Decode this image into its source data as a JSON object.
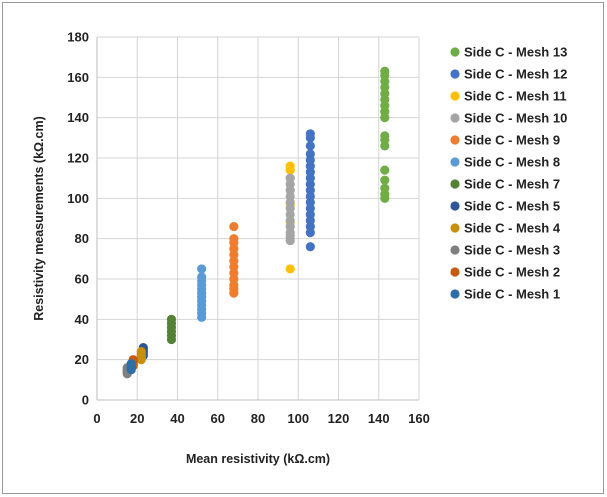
{
  "chart_data": {
    "type": "scatter",
    "title": "",
    "xlabel": "Mean resistivity (kΩ.cm)",
    "ylabel": "Resistivity measurements (kΩ.cm)",
    "xlim": [
      0,
      160
    ],
    "ylim": [
      0,
      180
    ],
    "xticks": [
      0,
      20,
      40,
      60,
      80,
      100,
      120,
      140,
      160
    ],
    "yticks": [
      0,
      20,
      40,
      60,
      80,
      100,
      120,
      140,
      160,
      180
    ],
    "grid": true,
    "legend_position": "right",
    "series": [
      {
        "name": "Side C - Mesh 13",
        "color": "#70ad47",
        "x": 143,
        "y": [
          100,
          102,
          105,
          109,
          114,
          126,
          129,
          131,
          140,
          143,
          146,
          149,
          152,
          155,
          158,
          161,
          163
        ]
      },
      {
        "name": "Side C - Mesh 12",
        "color": "#4472c4",
        "x": 106,
        "y": [
          76,
          83,
          86,
          89,
          92,
          95,
          98,
          101,
          104,
          107,
          110,
          113,
          116,
          119,
          122,
          126,
          130,
          132
        ]
      },
      {
        "name": "Side C - Mesh 11",
        "color": "#ffc000",
        "x": 96,
        "y": [
          65,
          88,
          97,
          104,
          110,
          114,
          116
        ]
      },
      {
        "name": "Side C - Mesh 10",
        "color": "#a5a5a5",
        "x": 96,
        "y": [
          79,
          81,
          83,
          86,
          89,
          92,
          95,
          98,
          101,
          104,
          107,
          110
        ]
      },
      {
        "name": "Side C - Mesh 9",
        "color": "#ed7d31",
        "x": 68,
        "y": [
          53,
          55,
          57,
          60,
          63,
          66,
          69,
          72,
          75,
          78,
          80,
          86
        ]
      },
      {
        "name": "Side C - Mesh 8",
        "color": "#5b9bd5",
        "x": 52,
        "y": [
          41,
          43,
          45,
          47,
          49,
          51,
          53,
          55,
          57,
          59,
          61,
          65
        ]
      },
      {
        "name": "Side C - Mesh 7",
        "color": "#548235",
        "x": 37,
        "y": [
          30,
          32,
          34,
          36,
          38,
          40
        ]
      },
      {
        "name": "Side C - Mesh 5",
        "color": "#2e5597",
        "x": 23,
        "y": [
          22,
          23,
          24,
          25,
          26
        ]
      },
      {
        "name": "Side C - Mesh 4",
        "color": "#c8900a",
        "x": 22,
        "y": [
          20,
          21,
          22,
          23,
          24
        ]
      },
      {
        "name": "Side C - Mesh 3",
        "color": "#7f7f7f",
        "x": 15,
        "y": [
          13,
          14,
          15,
          16
        ]
      },
      {
        "name": "Side C - Mesh 2",
        "color": "#c55a11",
        "x": 18,
        "y": [
          17,
          18,
          19,
          20
        ]
      },
      {
        "name": "Side C - Mesh 1",
        "color": "#2f6fa7",
        "x": 17,
        "y": [
          15,
          16,
          17,
          18
        ]
      }
    ]
  }
}
